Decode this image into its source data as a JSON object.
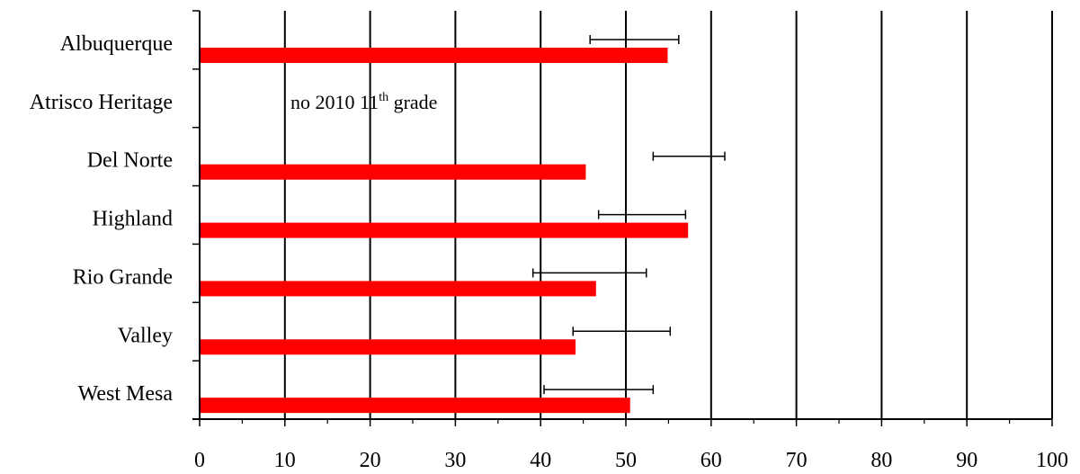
{
  "chart_data": {
    "type": "bar",
    "orientation": "horizontal",
    "categories": [
      "Albuquerque",
      "Atrisco Heritage",
      "Del Norte",
      "Highland",
      "Rio Grande",
      "Valley",
      "West Mesa"
    ],
    "series": [
      {
        "values": [
          54.9,
          null,
          45.3,
          57.3,
          46.5,
          44.1,
          50.5
        ],
        "error_low": [
          45.8,
          null,
          53.2,
          46.8,
          39.1,
          43.8,
          40.4
        ],
        "error_high": [
          56.2,
          null,
          61.6,
          57.0,
          52.4,
          55.2,
          53.2
        ],
        "color": "#ff0000"
      }
    ],
    "xlim": [
      0,
      100
    ],
    "x_ticks": [
      "0",
      "10",
      "20",
      "30",
      "40",
      "50",
      "60",
      "70",
      "80",
      "90",
      "100"
    ],
    "vertical_gridlines": true,
    "annotation": {
      "category": "Atrisco Heritage",
      "text_before": "no 2010 11",
      "superscript": "th",
      "text_after": " grade"
    },
    "title": "",
    "xlabel": "",
    "ylabel": ""
  }
}
